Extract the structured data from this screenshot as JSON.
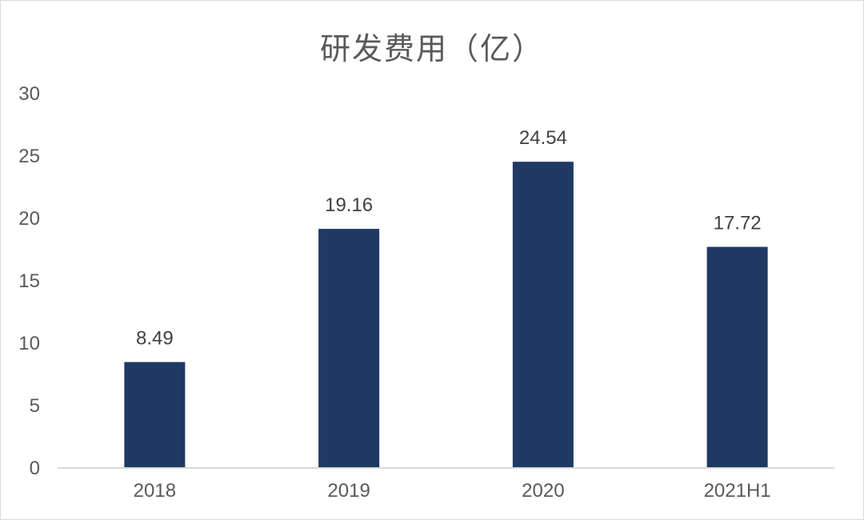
{
  "chart_data": {
    "type": "bar",
    "title": "研发费用（亿）",
    "categories": [
      "2018",
      "2019",
      "2020",
      "2021H1"
    ],
    "values": [
      8.49,
      19.16,
      24.54,
      17.72
    ],
    "value_labels": [
      "8.49",
      "19.16",
      "24.54",
      "17.72"
    ],
    "ylim": [
      0,
      30
    ],
    "yticks": [
      "0",
      "5",
      "10",
      "15",
      "20",
      "25",
      "30"
    ],
    "grid": false,
    "legend": "none",
    "bar_color": "#1f3864",
    "axis_color": "#d9d9d9",
    "text_color": "#595959"
  }
}
